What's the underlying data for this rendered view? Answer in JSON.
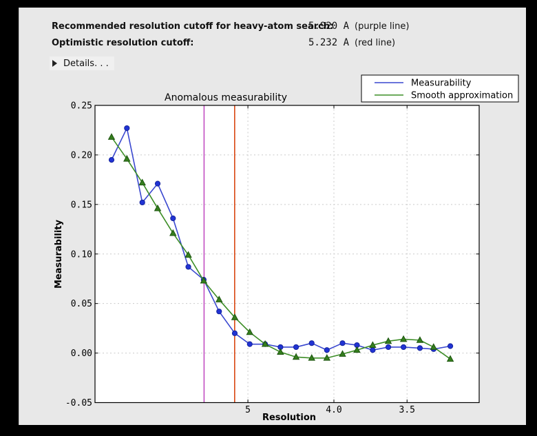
{
  "window": {
    "frame_color": "#000000",
    "panel_bg": "#e8e8e8"
  },
  "header": {
    "rows": [
      {
        "label": "Recommended resolution cutoff for heavy-atom search:",
        "value": "5.920 A",
        "note": "(purple line)"
      },
      {
        "label": "Optimistic resolution cutoff:",
        "value": "5.232 A",
        "note": "(red line)"
      }
    ],
    "details": {
      "label": "Details. . ."
    }
  },
  "chart_data": {
    "type": "line",
    "title": "Anomalous measurability",
    "xlabel": "Resolution",
    "ylabel": "Measurability",
    "x_scale": "inverse_d_squared",
    "x_axis_note": "resolution in Angstrom, decreasing left to right, linear in 1/d^2",
    "ylim": [
      -0.05,
      0.25
    ],
    "s_range": [
      0,
      0.1005
    ],
    "grid": true,
    "grid_color": "#c9c9c9",
    "plot_bg": "#ffffff",
    "x_ticks": [
      {
        "label": "5",
        "d": 5.0
      },
      {
        "label": "4.0",
        "d": 4.0
      },
      {
        "label": "3.5",
        "d": 3.5
      }
    ],
    "y_ticks": [
      {
        "label": "0.25",
        "v": 0.25,
        "grid": false
      },
      {
        "label": "0.20",
        "v": 0.2,
        "grid": true
      },
      {
        "label": "0.15",
        "v": 0.15,
        "grid": true
      },
      {
        "label": "0.10",
        "v": 0.1,
        "grid": true
      },
      {
        "label": "0.05",
        "v": 0.05,
        "grid": true
      },
      {
        "label": "0.00",
        "v": 0.0,
        "grid": true
      },
      {
        "label": "-0.05",
        "v": -0.05,
        "grid": false
      }
    ],
    "resolution_bins_d": [
      15.21,
      10.95,
      8.99,
      7.81,
      7.0,
      6.4,
      5.93,
      5.55,
      5.23,
      4.97,
      4.74,
      4.54,
      4.36,
      4.2,
      4.06,
      3.93,
      3.82,
      3.71,
      3.61,
      3.52,
      3.43,
      3.36,
      3.28
    ],
    "series": [
      {
        "name": "Measurability",
        "marker": "circle",
        "line_color": "#3947cf",
        "marker_fill": "#2133d4",
        "marker_edge": "#15249c",
        "values": [
          0.195,
          0.227,
          0.152,
          0.171,
          0.136,
          0.087,
          0.074,
          0.042,
          0.02,
          0.009,
          0.009,
          0.006,
          0.006,
          0.01,
          0.003,
          0.01,
          0.008,
          0.003,
          0.006,
          0.006,
          0.005,
          0.004,
          0.007
        ]
      },
      {
        "name": "Smooth approximation",
        "marker": "triangle",
        "line_color": "#3c8d26",
        "marker_fill": "#357e1d",
        "marker_edge": "#1d5510",
        "values": [
          0.218,
          0.196,
          0.172,
          0.146,
          0.121,
          0.099,
          0.073,
          0.054,
          0.036,
          0.021,
          0.009,
          0.001,
          -0.004,
          -0.005,
          -0.005,
          -0.001,
          0.003,
          0.008,
          0.012,
          0.014,
          0.013,
          0.006,
          -0.006
        ]
      }
    ],
    "cutoff_lines": [
      {
        "name": "recommended-heavy-atom-cutoff",
        "d": 5.92,
        "color": "#c24ec2",
        "label": "purple line"
      },
      {
        "name": "optimistic-cutoff",
        "d": 5.232,
        "color": "#d9440f",
        "label": "red line"
      }
    ],
    "legend_position": "upper-right-outside"
  }
}
